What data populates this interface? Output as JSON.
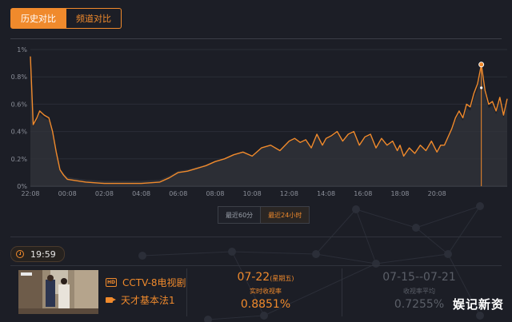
{
  "tabs": [
    {
      "label": "历史对比",
      "active": true
    },
    {
      "label": "频道对比",
      "active": false
    }
  ],
  "range_buttons": [
    {
      "label": "最近60分",
      "active": false
    },
    {
      "label": "最近24小时",
      "active": true
    }
  ],
  "current_time": "19:59",
  "program": {
    "channel": "CCTV-8电视剧",
    "title": "天才基本法1"
  },
  "today": {
    "date": "07-22",
    "weekday": "(星期五)",
    "label": "实时收视率",
    "value": "0.8851%"
  },
  "week": {
    "date": "07-15--07-21",
    "label": "收视率平均",
    "value": "0.7255%"
  },
  "watermark": "娱记新资",
  "colors": {
    "accent": "#f08a2c",
    "background": "#1c1e26"
  },
  "chart_data": {
    "type": "line",
    "title": "",
    "xlabel": "",
    "ylabel": "",
    "ylim": [
      0,
      1
    ],
    "yticks": [
      "0%",
      "0.2%",
      "0.4%",
      "0.6%",
      "0.8%",
      "1%"
    ],
    "xticks": [
      "22:08",
      "00:08",
      "02:08",
      "04:08",
      "06:08",
      "08:08",
      "10:08",
      "12:08",
      "14:08",
      "16:08",
      "18:08",
      "20:08"
    ],
    "x_hours": [
      0,
      0.15,
      0.35,
      0.5,
      0.75,
      1.0,
      1.2,
      1.4,
      1.6,
      1.8,
      2.0,
      2.5,
      3,
      4,
      5,
      6,
      7,
      7.5,
      8,
      8.5,
      9,
      9.5,
      10,
      10.5,
      11,
      11.5,
      12,
      12.5,
      13,
      13.5,
      14,
      14.3,
      14.6,
      14.9,
      15.2,
      15.5,
      15.8,
      16.0,
      16.3,
      16.6,
      16.9,
      17.2,
      17.5,
      17.8,
      18.1,
      18.4,
      18.7,
      19.0,
      19.3,
      19.6,
      19.85,
      20.0,
      20.2,
      20.5,
      20.8,
      21.1,
      21.4,
      21.7,
      22.0,
      22.2,
      22.4,
      22.6,
      22.8,
      23.0,
      23.2,
      23.4,
      23.6,
      23.8,
      24.0,
      24.2,
      24.4,
      24.6,
      24.8,
      25.0,
      25.2,
      25.4,
      25.6,
      25.8
    ],
    "series": [
      {
        "values": [
          0.95,
          0.45,
          0.5,
          0.55,
          0.52,
          0.5,
          0.4,
          0.25,
          0.12,
          0.08,
          0.05,
          0.04,
          0.03,
          0.02,
          0.02,
          0.02,
          0.03,
          0.06,
          0.1,
          0.11,
          0.13,
          0.15,
          0.18,
          0.2,
          0.23,
          0.25,
          0.22,
          0.28,
          0.3,
          0.26,
          0.33,
          0.35,
          0.32,
          0.34,
          0.28,
          0.38,
          0.3,
          0.35,
          0.37,
          0.4,
          0.33,
          0.38,
          0.4,
          0.3,
          0.36,
          0.38,
          0.28,
          0.35,
          0.3,
          0.33,
          0.26,
          0.3,
          0.22,
          0.28,
          0.24,
          0.3,
          0.26,
          0.33,
          0.25,
          0.3,
          0.3,
          0.36,
          0.42,
          0.5,
          0.55,
          0.5,
          0.6,
          0.58,
          0.68,
          0.75,
          0.89,
          0.7,
          0.6,
          0.62,
          0.55,
          0.65,
          0.52,
          0.64
        ]
      }
    ]
  }
}
